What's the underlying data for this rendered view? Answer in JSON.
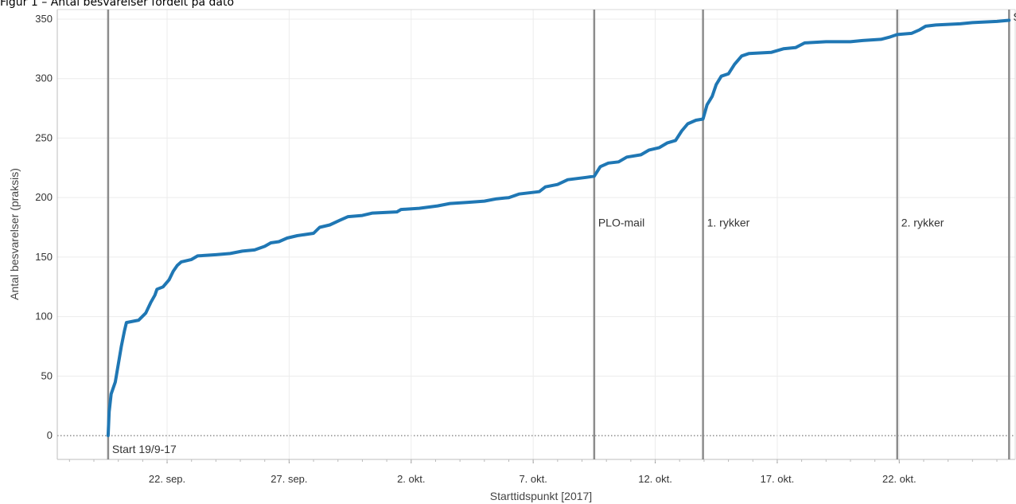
{
  "figure_caption": "Figur 1 – Antal besvarelser fordelt på dato",
  "chart_data": {
    "type": "line",
    "title": "",
    "xlabel": "Starttidspunkt [2017]",
    "ylabel": "Antal besvarelser (praksis)",
    "x_is_date": true,
    "x_range": [
      "2017-09-17T12:00",
      "2017-10-26T18:00"
    ],
    "ylim": [
      -20,
      358
    ],
    "y_ticks": [
      0,
      50,
      100,
      150,
      200,
      250,
      300,
      350
    ],
    "x_ticks": [
      {
        "date": "2017-09-22",
        "label": "22. sep."
      },
      {
        "date": "2017-09-27",
        "label": "27. sep."
      },
      {
        "date": "2017-10-02",
        "label": "2. okt."
      },
      {
        "date": "2017-10-07",
        "label": "7. okt."
      },
      {
        "date": "2017-10-12",
        "label": "12. okt."
      },
      {
        "date": "2017-10-17",
        "label": "17. okt."
      },
      {
        "date": "2017-10-22",
        "label": "22. okt."
      }
    ],
    "grid": true,
    "zero_line": "dotted",
    "line_color": "#1f77b4",
    "marker_color": "#8c8c8c",
    "series": [
      {
        "points": [
          [
            "2017-09-19T14:00",
            0
          ],
          [
            "2017-09-19T15:00",
            20
          ],
          [
            "2017-09-19T17:00",
            35
          ],
          [
            "2017-09-19T21:00",
            45
          ],
          [
            "2017-09-20T00:00",
            60
          ],
          [
            "2017-09-20T03:00",
            75
          ],
          [
            "2017-09-20T06:00",
            88
          ],
          [
            "2017-09-20T08:00",
            95
          ],
          [
            "2017-09-20T20:00",
            97
          ],
          [
            "2017-09-21T03:00",
            103
          ],
          [
            "2017-09-21T08:00",
            112
          ],
          [
            "2017-09-21T12:00",
            118
          ],
          [
            "2017-09-21T14:00",
            123
          ],
          [
            "2017-09-21T20:00",
            125
          ],
          [
            "2017-09-22T02:00",
            131
          ],
          [
            "2017-09-22T06:00",
            138
          ],
          [
            "2017-09-22T10:00",
            143
          ],
          [
            "2017-09-22T14:00",
            146
          ],
          [
            "2017-09-23T00:00",
            148
          ],
          [
            "2017-09-23T06:00",
            151
          ],
          [
            "2017-09-24T00:00",
            152
          ],
          [
            "2017-09-24T14:00",
            153
          ],
          [
            "2017-09-25T02:00",
            155
          ],
          [
            "2017-09-25T14:00",
            156
          ],
          [
            "2017-09-26T00:00",
            159
          ],
          [
            "2017-09-26T06:00",
            162
          ],
          [
            "2017-09-26T14:00",
            163
          ],
          [
            "2017-09-26T22:00",
            166
          ],
          [
            "2017-09-27T08:00",
            168
          ],
          [
            "2017-09-28T00:00",
            170
          ],
          [
            "2017-09-28T06:00",
            175
          ],
          [
            "2017-09-28T16:00",
            177
          ],
          [
            "2017-09-29T02:00",
            181
          ],
          [
            "2017-09-29T10:00",
            184
          ],
          [
            "2017-09-30T00:00",
            185
          ],
          [
            "2017-09-30T10:00",
            187
          ],
          [
            "2017-10-01T10:00",
            188
          ],
          [
            "2017-10-01T14:00",
            190
          ],
          [
            "2017-10-02T08:00",
            191
          ],
          [
            "2017-10-03T02:00",
            193
          ],
          [
            "2017-10-03T14:00",
            195
          ],
          [
            "2017-10-04T08:00",
            196
          ],
          [
            "2017-10-05T00:00",
            197
          ],
          [
            "2017-10-05T12:00",
            199
          ],
          [
            "2017-10-06T00:00",
            200
          ],
          [
            "2017-10-06T10:00",
            203
          ],
          [
            "2017-10-07T06:00",
            205
          ],
          [
            "2017-10-07T12:00",
            209
          ],
          [
            "2017-10-08T00:00",
            211
          ],
          [
            "2017-10-08T10:00",
            215
          ],
          [
            "2017-10-09T04:00",
            217
          ],
          [
            "2017-10-09T12:00",
            218
          ],
          [
            "2017-10-09T18:00",
            226
          ],
          [
            "2017-10-10T02:00",
            229
          ],
          [
            "2017-10-10T12:00",
            230
          ],
          [
            "2017-10-10T20:00",
            234
          ],
          [
            "2017-10-11T10:00",
            236
          ],
          [
            "2017-10-11T18:00",
            240
          ],
          [
            "2017-10-12T04:00",
            242
          ],
          [
            "2017-10-12T12:00",
            246
          ],
          [
            "2017-10-12T20:00",
            248
          ],
          [
            "2017-10-13T02:00",
            256
          ],
          [
            "2017-10-13T08:00",
            262
          ],
          [
            "2017-10-13T16:00",
            265
          ],
          [
            "2017-10-13T23:00",
            266
          ],
          [
            "2017-10-14T03:00",
            278
          ],
          [
            "2017-10-14T08:00",
            285
          ],
          [
            "2017-10-14T12:00",
            295
          ],
          [
            "2017-10-14T17:00",
            302
          ],
          [
            "2017-10-15T00:00",
            304
          ],
          [
            "2017-10-15T06:00",
            312
          ],
          [
            "2017-10-15T13:00",
            319
          ],
          [
            "2017-10-15T20:00",
            321
          ],
          [
            "2017-10-16T18:00",
            322
          ],
          [
            "2017-10-17T06:00",
            325
          ],
          [
            "2017-10-17T18:00",
            326
          ],
          [
            "2017-10-18T03:00",
            330
          ],
          [
            "2017-10-19T00:00",
            331
          ],
          [
            "2017-10-20T00:00",
            331
          ],
          [
            "2017-10-20T12:00",
            332
          ],
          [
            "2017-10-21T06:00",
            333
          ],
          [
            "2017-10-21T15:00",
            335
          ],
          [
            "2017-10-21T22:00",
            337
          ],
          [
            "2017-10-22T12:00",
            338
          ],
          [
            "2017-10-22T20:00",
            341
          ],
          [
            "2017-10-23T02:00",
            344
          ],
          [
            "2017-10-23T12:00",
            345
          ],
          [
            "2017-10-24T12:00",
            346
          ],
          [
            "2017-10-25T00:00",
            347
          ],
          [
            "2017-10-26T00:00",
            348
          ],
          [
            "2017-10-26T12:00",
            349
          ]
        ]
      }
    ],
    "markers": [
      {
        "date": "2017-09-19T14:00",
        "label": "Start 19/9-17",
        "label_position": "bottom"
      },
      {
        "date": "2017-10-09T12:00",
        "label": "PLO-mail",
        "label_position": "middle"
      },
      {
        "date": "2017-10-13T23:00",
        "label": "1. rykker",
        "label_position": "middle"
      },
      {
        "date": "2017-10-21T22:00",
        "label": "2. rykker",
        "label_position": "middle"
      },
      {
        "date": "2017-10-26T12:00",
        "label": "Slut",
        "label_position": "top"
      }
    ]
  }
}
